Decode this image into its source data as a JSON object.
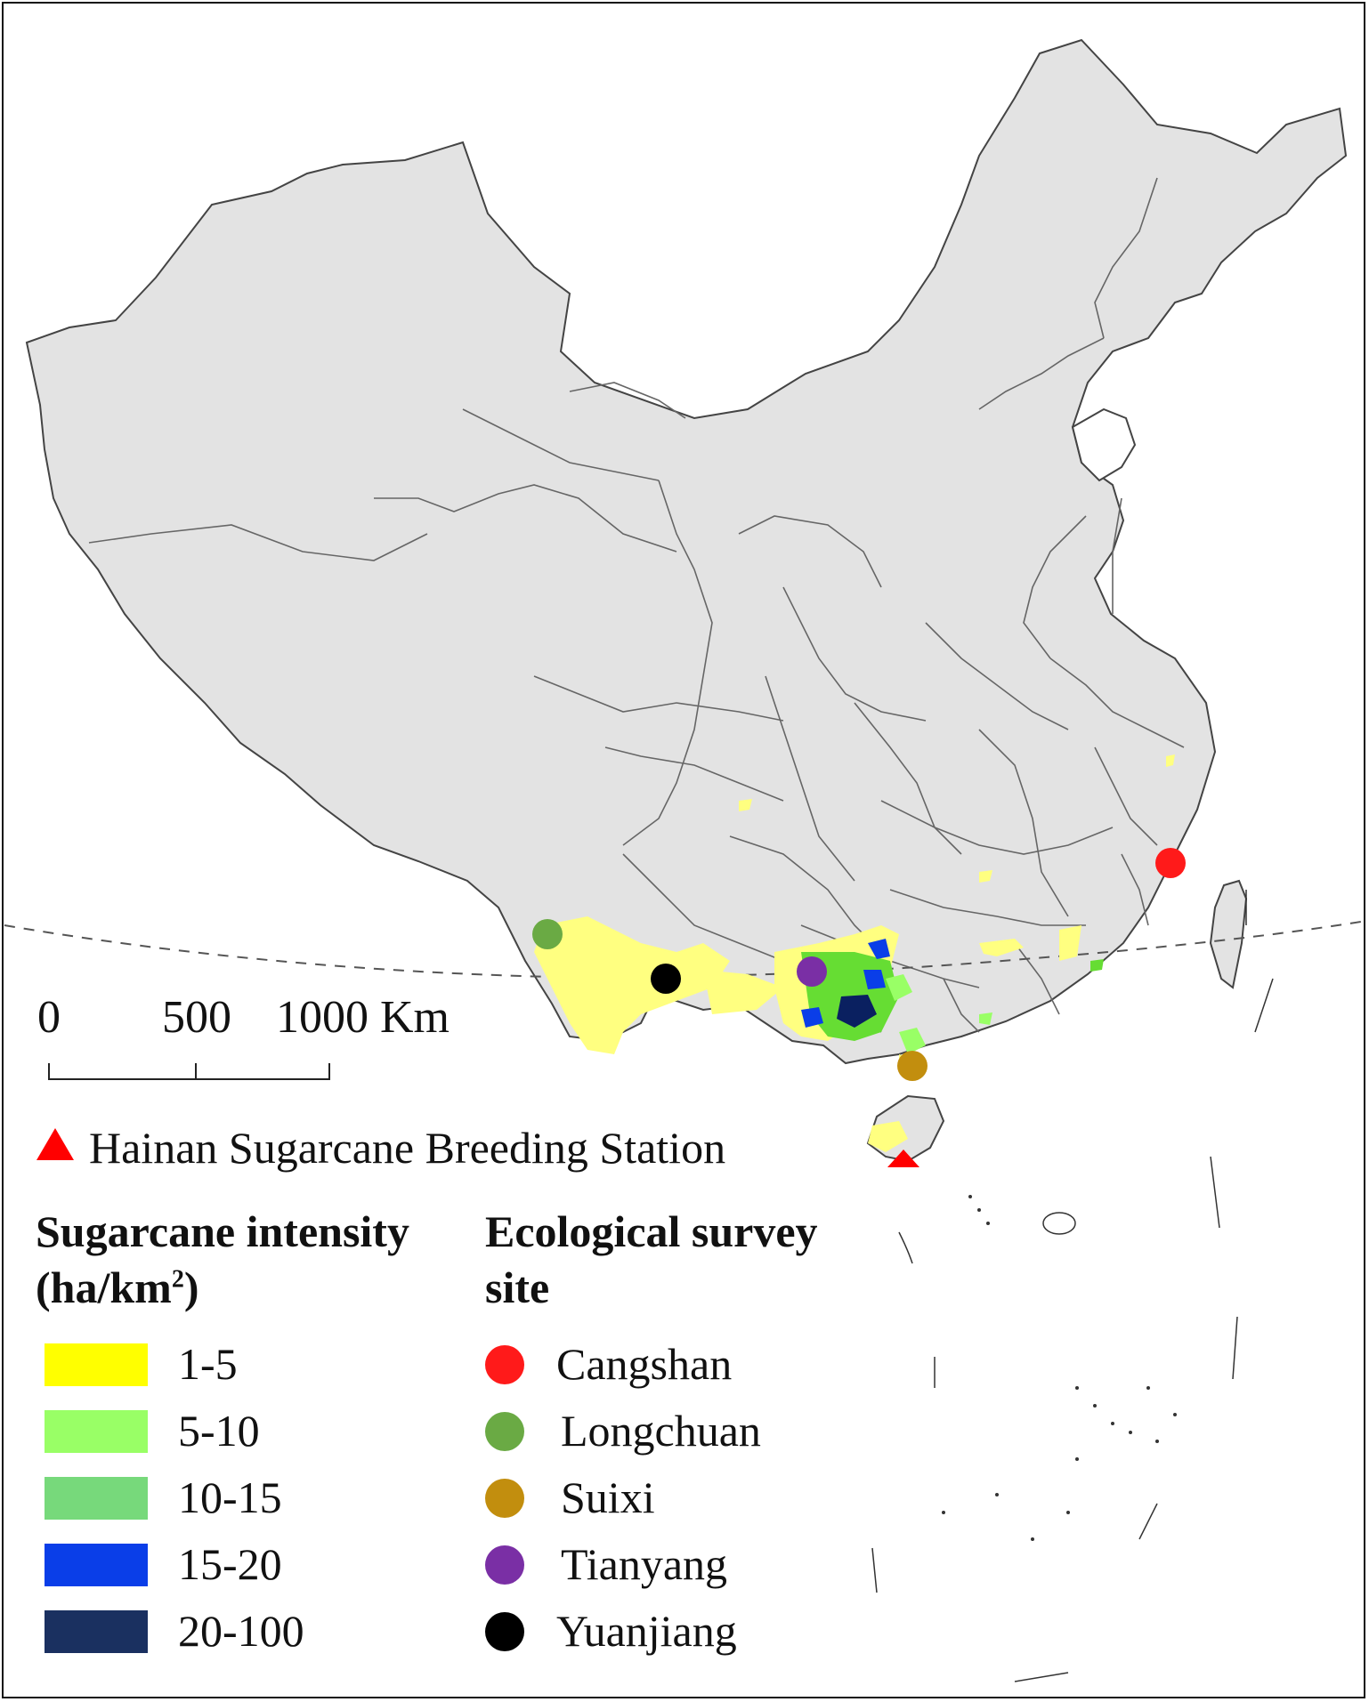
{
  "scale_bar": {
    "ticks": [
      "0",
      "500",
      "1000 Km"
    ]
  },
  "station": {
    "label": "Hainan Sugarcane Breeding Station",
    "color": "#ff0000",
    "symbol": "triangle"
  },
  "intensity_legend": {
    "title_line1": "Sugarcane intensity",
    "title_line2_prefix": "(ha/km",
    "title_line2_sup": "2",
    "title_line2_suffix": ")",
    "classes": [
      {
        "label": "1-5",
        "color": "#ffff00"
      },
      {
        "label": "5-10",
        "color": "#99ff66"
      },
      {
        "label": "10-15",
        "color": "#77d97b"
      },
      {
        "label": "15-20",
        "color": "#0a3ee8"
      },
      {
        "label": "20-100",
        "color": "#1a3060"
      }
    ]
  },
  "site_legend": {
    "title_line1": "Ecological survey",
    "title_line2": "site",
    "sites": [
      {
        "label": "Cangshan",
        "color": "#ff1a1a"
      },
      {
        "label": "Longchuan",
        "color": "#6aaa44"
      },
      {
        "label": "Suixi",
        "color": "#c28e0e"
      },
      {
        "label": "Tianyang",
        "color": "#7a2fa5"
      },
      {
        "label": "Yuanjiang",
        "color": "#000000"
      }
    ]
  },
  "map": {
    "land_color": "#e3e3e3",
    "border_color": "#555555"
  }
}
